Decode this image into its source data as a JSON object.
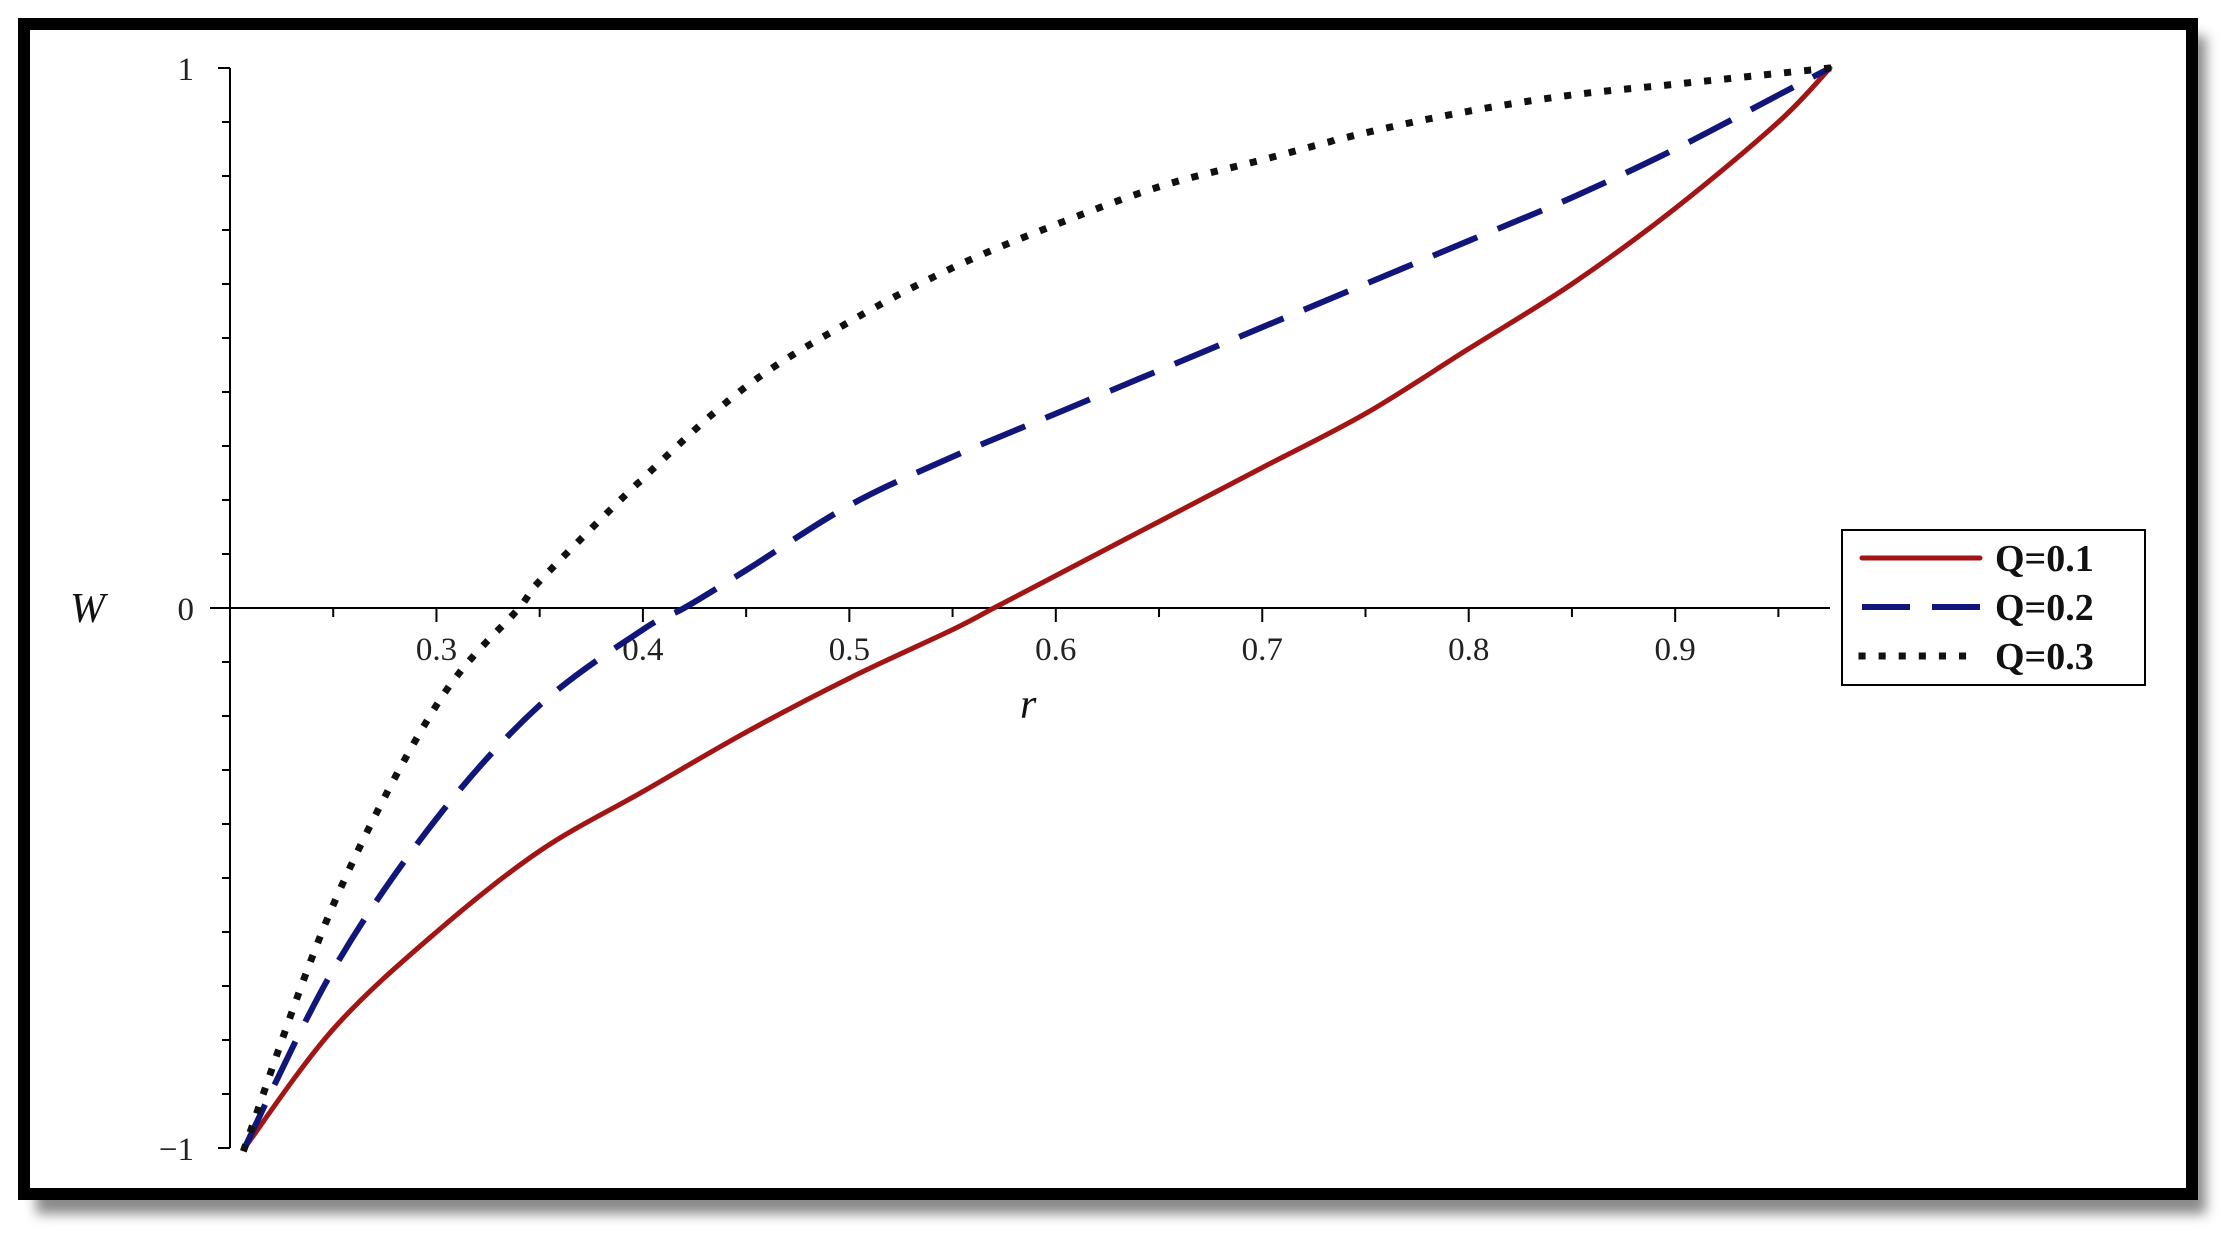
{
  "chart_data": {
    "type": "line",
    "title": "",
    "xlabel": "r",
    "ylabel": "W",
    "xlim": [
      0.2,
      0.975
    ],
    "ylim": [
      -1,
      1
    ],
    "x_ticks": [
      0.3,
      0.4,
      0.5,
      0.6,
      0.7,
      0.8,
      0.9
    ],
    "x_tick_labels": [
      "0.3",
      "0.4",
      "0.5",
      "0.6",
      "0.7",
      "0.8",
      "0.9"
    ],
    "y_ticks": [
      -1,
      0,
      1
    ],
    "y_tick_labels": [
      "−1",
      "0",
      "1"
    ],
    "grid": false,
    "legend_position": "right",
    "series": [
      {
        "name": "Q=0.1",
        "color": "#a31515",
        "style": "solid",
        "x": [
          0.207,
          0.25,
          0.3,
          0.35,
          0.4,
          0.45,
          0.5,
          0.55,
          0.57,
          0.6,
          0.65,
          0.7,
          0.75,
          0.8,
          0.85,
          0.9,
          0.95,
          0.975
        ],
        "y": [
          -1.0,
          -0.78,
          -0.6,
          -0.45,
          -0.34,
          -0.23,
          -0.13,
          -0.04,
          0.0,
          0.06,
          0.16,
          0.26,
          0.36,
          0.48,
          0.6,
          0.74,
          0.9,
          1.0
        ]
      },
      {
        "name": "Q=0.2",
        "color": "#10167a",
        "style": "dashed",
        "x": [
          0.207,
          0.25,
          0.3,
          0.35,
          0.4,
          0.42,
          0.45,
          0.5,
          0.55,
          0.6,
          0.65,
          0.7,
          0.75,
          0.8,
          0.85,
          0.9,
          0.95,
          0.975
        ],
        "y": [
          -1.0,
          -0.67,
          -0.39,
          -0.18,
          -0.04,
          0.0,
          0.07,
          0.19,
          0.28,
          0.36,
          0.44,
          0.52,
          0.6,
          0.68,
          0.76,
          0.85,
          0.95,
          1.0
        ]
      },
      {
        "name": "Q=0.3",
        "color": "#111111",
        "style": "dotted",
        "x": [
          0.207,
          0.25,
          0.3,
          0.34,
          0.35,
          0.4,
          0.45,
          0.5,
          0.55,
          0.6,
          0.65,
          0.7,
          0.75,
          0.8,
          0.85,
          0.9,
          0.95,
          0.975
        ],
        "y": [
          -1.0,
          -0.55,
          -0.18,
          0.0,
          0.05,
          0.24,
          0.41,
          0.53,
          0.63,
          0.71,
          0.78,
          0.83,
          0.88,
          0.92,
          0.95,
          0.97,
          0.99,
          1.0
        ]
      }
    ]
  }
}
